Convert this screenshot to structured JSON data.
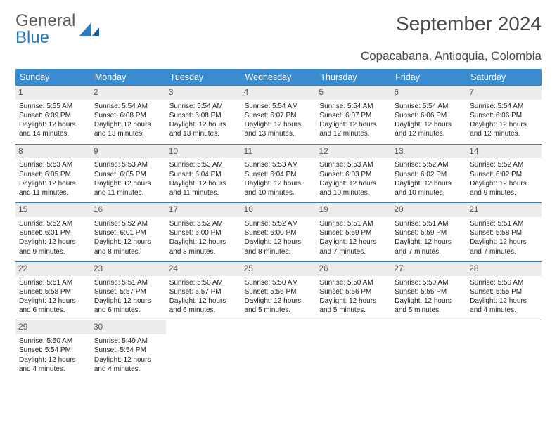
{
  "logo": {
    "text1": "General",
    "text2": "Blue"
  },
  "title": "September 2024",
  "location": "Copacabana, Antioquia, Colombia",
  "day_headers": [
    "Sunday",
    "Monday",
    "Tuesday",
    "Wednesday",
    "Thursday",
    "Friday",
    "Saturday"
  ],
  "header_bg": "#3b8bd0",
  "header_fg": "#ffffff",
  "cell_border": "#3b7bb8",
  "daynum_bg": "#ececec",
  "body_fontsize": 10,
  "header_fontsize": 12.5,
  "title_fontsize": 28,
  "location_fontsize": 17,
  "days": [
    {
      "n": "1",
      "sr": "Sunrise: 5:55 AM",
      "ss": "Sunset: 6:09 PM",
      "d1": "Daylight: 12 hours",
      "d2": "and 14 minutes."
    },
    {
      "n": "2",
      "sr": "Sunrise: 5:54 AM",
      "ss": "Sunset: 6:08 PM",
      "d1": "Daylight: 12 hours",
      "d2": "and 13 minutes."
    },
    {
      "n": "3",
      "sr": "Sunrise: 5:54 AM",
      "ss": "Sunset: 6:08 PM",
      "d1": "Daylight: 12 hours",
      "d2": "and 13 minutes."
    },
    {
      "n": "4",
      "sr": "Sunrise: 5:54 AM",
      "ss": "Sunset: 6:07 PM",
      "d1": "Daylight: 12 hours",
      "d2": "and 13 minutes."
    },
    {
      "n": "5",
      "sr": "Sunrise: 5:54 AM",
      "ss": "Sunset: 6:07 PM",
      "d1": "Daylight: 12 hours",
      "d2": "and 12 minutes."
    },
    {
      "n": "6",
      "sr": "Sunrise: 5:54 AM",
      "ss": "Sunset: 6:06 PM",
      "d1": "Daylight: 12 hours",
      "d2": "and 12 minutes."
    },
    {
      "n": "7",
      "sr": "Sunrise: 5:54 AM",
      "ss": "Sunset: 6:06 PM",
      "d1": "Daylight: 12 hours",
      "d2": "and 12 minutes."
    },
    {
      "n": "8",
      "sr": "Sunrise: 5:53 AM",
      "ss": "Sunset: 6:05 PM",
      "d1": "Daylight: 12 hours",
      "d2": "and 11 minutes."
    },
    {
      "n": "9",
      "sr": "Sunrise: 5:53 AM",
      "ss": "Sunset: 6:05 PM",
      "d1": "Daylight: 12 hours",
      "d2": "and 11 minutes."
    },
    {
      "n": "10",
      "sr": "Sunrise: 5:53 AM",
      "ss": "Sunset: 6:04 PM",
      "d1": "Daylight: 12 hours",
      "d2": "and 11 minutes."
    },
    {
      "n": "11",
      "sr": "Sunrise: 5:53 AM",
      "ss": "Sunset: 6:04 PM",
      "d1": "Daylight: 12 hours",
      "d2": "and 10 minutes."
    },
    {
      "n": "12",
      "sr": "Sunrise: 5:53 AM",
      "ss": "Sunset: 6:03 PM",
      "d1": "Daylight: 12 hours",
      "d2": "and 10 minutes."
    },
    {
      "n": "13",
      "sr": "Sunrise: 5:52 AM",
      "ss": "Sunset: 6:02 PM",
      "d1": "Daylight: 12 hours",
      "d2": "and 10 minutes."
    },
    {
      "n": "14",
      "sr": "Sunrise: 5:52 AM",
      "ss": "Sunset: 6:02 PM",
      "d1": "Daylight: 12 hours",
      "d2": "and 9 minutes."
    },
    {
      "n": "15",
      "sr": "Sunrise: 5:52 AM",
      "ss": "Sunset: 6:01 PM",
      "d1": "Daylight: 12 hours",
      "d2": "and 9 minutes."
    },
    {
      "n": "16",
      "sr": "Sunrise: 5:52 AM",
      "ss": "Sunset: 6:01 PM",
      "d1": "Daylight: 12 hours",
      "d2": "and 8 minutes."
    },
    {
      "n": "17",
      "sr": "Sunrise: 5:52 AM",
      "ss": "Sunset: 6:00 PM",
      "d1": "Daylight: 12 hours",
      "d2": "and 8 minutes."
    },
    {
      "n": "18",
      "sr": "Sunrise: 5:52 AM",
      "ss": "Sunset: 6:00 PM",
      "d1": "Daylight: 12 hours",
      "d2": "and 8 minutes."
    },
    {
      "n": "19",
      "sr": "Sunrise: 5:51 AM",
      "ss": "Sunset: 5:59 PM",
      "d1": "Daylight: 12 hours",
      "d2": "and 7 minutes."
    },
    {
      "n": "20",
      "sr": "Sunrise: 5:51 AM",
      "ss": "Sunset: 5:59 PM",
      "d1": "Daylight: 12 hours",
      "d2": "and 7 minutes."
    },
    {
      "n": "21",
      "sr": "Sunrise: 5:51 AM",
      "ss": "Sunset: 5:58 PM",
      "d1": "Daylight: 12 hours",
      "d2": "and 7 minutes."
    },
    {
      "n": "22",
      "sr": "Sunrise: 5:51 AM",
      "ss": "Sunset: 5:58 PM",
      "d1": "Daylight: 12 hours",
      "d2": "and 6 minutes."
    },
    {
      "n": "23",
      "sr": "Sunrise: 5:51 AM",
      "ss": "Sunset: 5:57 PM",
      "d1": "Daylight: 12 hours",
      "d2": "and 6 minutes."
    },
    {
      "n": "24",
      "sr": "Sunrise: 5:50 AM",
      "ss": "Sunset: 5:57 PM",
      "d1": "Daylight: 12 hours",
      "d2": "and 6 minutes."
    },
    {
      "n": "25",
      "sr": "Sunrise: 5:50 AM",
      "ss": "Sunset: 5:56 PM",
      "d1": "Daylight: 12 hours",
      "d2": "and 5 minutes."
    },
    {
      "n": "26",
      "sr": "Sunrise: 5:50 AM",
      "ss": "Sunset: 5:56 PM",
      "d1": "Daylight: 12 hours",
      "d2": "and 5 minutes."
    },
    {
      "n": "27",
      "sr": "Sunrise: 5:50 AM",
      "ss": "Sunset: 5:55 PM",
      "d1": "Daylight: 12 hours",
      "d2": "and 5 minutes."
    },
    {
      "n": "28",
      "sr": "Sunrise: 5:50 AM",
      "ss": "Sunset: 5:55 PM",
      "d1": "Daylight: 12 hours",
      "d2": "and 4 minutes."
    },
    {
      "n": "29",
      "sr": "Sunrise: 5:50 AM",
      "ss": "Sunset: 5:54 PM",
      "d1": "Daylight: 12 hours",
      "d2": "and 4 minutes."
    },
    {
      "n": "30",
      "sr": "Sunrise: 5:49 AM",
      "ss": "Sunset: 5:54 PM",
      "d1": "Daylight: 12 hours",
      "d2": "and 4 minutes."
    }
  ],
  "trailing_empty": 5
}
